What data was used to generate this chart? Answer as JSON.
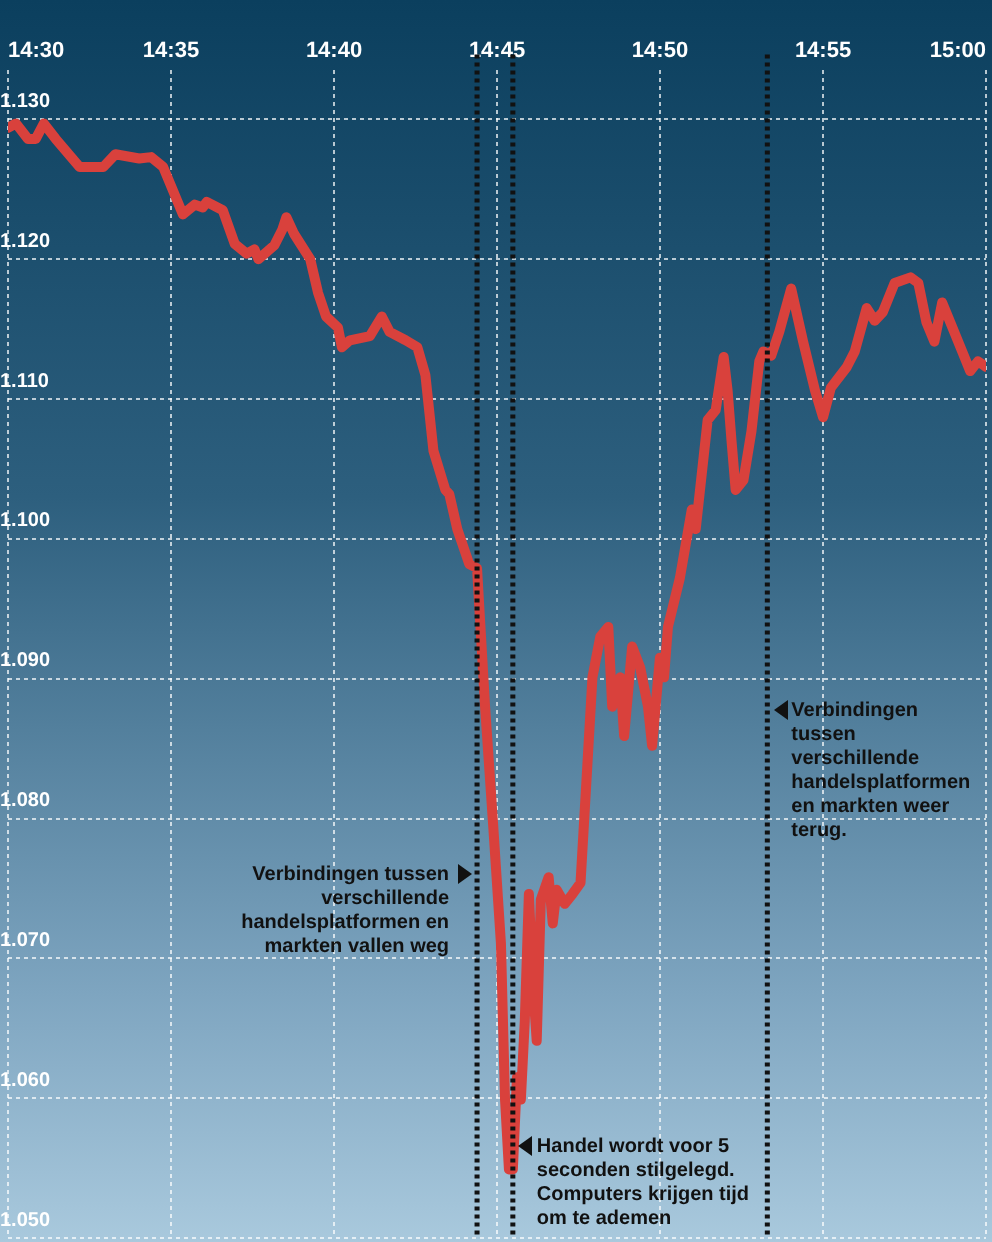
{
  "chart_data": {
    "type": "line",
    "legend": false,
    "grid": true,
    "marker": "none",
    "line_style": "solid",
    "xlim": [
      14.5,
      15.0
    ],
    "xticks": [
      {
        "value": 14.5,
        "label": "14:30"
      },
      {
        "value": 14.583333,
        "label": "14:35"
      },
      {
        "value": 14.666667,
        "label": "14:40"
      },
      {
        "value": 14.75,
        "label": "14:45"
      },
      {
        "value": 14.833333,
        "label": "14:50"
      },
      {
        "value": 14.916667,
        "label": "14:55"
      },
      {
        "value": 15.0,
        "label": "15:00"
      }
    ],
    "ylim": [
      1.05,
      1.1335
    ],
    "yticks": [
      {
        "value": 1.05,
        "label": "1.050"
      },
      {
        "value": 1.06,
        "label": "1.060"
      },
      {
        "value": 1.07,
        "label": "1.070"
      },
      {
        "value": 1.08,
        "label": "1.080"
      },
      {
        "value": 1.09,
        "label": "1.090"
      },
      {
        "value": 1.1,
        "label": "1.100"
      },
      {
        "value": 1.11,
        "label": "1.110"
      },
      {
        "value": 1.12,
        "label": "1.120"
      },
      {
        "value": 1.13,
        "label": "1.130"
      }
    ],
    "x": [
      14.5,
      14.5041,
      14.5102,
      14.5142,
      14.5183,
      14.5244,
      14.5366,
      14.5488,
      14.5549,
      14.5671,
      14.5732,
      14.5793,
      14.5894,
      14.5955,
      14.5996,
      14.6016,
      14.6098,
      14.6159,
      14.622,
      14.626,
      14.628,
      14.6362,
      14.6402,
      14.6423,
      14.6463,
      14.6545,
      14.6585,
      14.6626,
      14.6687,
      14.6707,
      14.6748,
      14.685,
      14.6911,
      14.6951,
      14.7033,
      14.7093,
      14.7134,
      14.7175,
      14.7236,
      14.7256,
      14.7297,
      14.7358,
      14.7398,
      14.7439,
      14.748,
      14.752,
      14.7541,
      14.7561,
      14.7581,
      14.7602,
      14.7622,
      14.7642,
      14.7663,
      14.7683,
      14.7703,
      14.7724,
      14.7764,
      14.7785,
      14.7805,
      14.7846,
      14.7886,
      14.7927,
      14.7988,
      14.8028,
      14.8069,
      14.8089,
      14.813,
      14.815,
      14.8191,
      14.8232,
      14.8272,
      14.8293,
      14.8333,
      14.8354,
      14.8374,
      14.8435,
      14.8496,
      14.8516,
      14.8577,
      14.8618,
      14.8659,
      14.8679,
      14.8699,
      14.872,
      14.876,
      14.8801,
      14.8841,
      14.8862,
      14.8902,
      14.8943,
      14.9004,
      14.9065,
      14.9126,
      14.9167,
      14.9207,
      14.9289,
      14.9329,
      14.939,
      14.9431,
      14.9472,
      14.9533,
      14.9614,
      14.9654,
      14.9695,
      14.9736,
      14.9776,
      14.9817,
      14.9878,
      14.9919,
      14.9959,
      15.0
    ],
    "series": [
      {
        "color": "#d9413c",
        "values": [
          1.1294,
          1.1297,
          1.1286,
          1.1286,
          1.1297,
          1.1286,
          1.1266,
          1.1266,
          1.1275,
          1.1272,
          1.1273,
          1.1266,
          1.1232,
          1.1239,
          1.1237,
          1.1241,
          1.1235,
          1.1211,
          1.1204,
          1.1207,
          1.12,
          1.121,
          1.1221,
          1.123,
          1.1218,
          1.12,
          1.1176,
          1.1159,
          1.1151,
          1.1137,
          1.1142,
          1.1145,
          1.1159,
          1.1148,
          1.1142,
          1.1137,
          1.1117,
          1.1063,
          1.1035,
          1.1032,
          1.1007,
          1.0982,
          1.0979,
          1.088,
          1.0796,
          1.0711,
          1.0599,
          1.0549,
          1.0549,
          1.0615,
          1.0599,
          1.0655,
          1.0746,
          1.0683,
          1.0641,
          1.0742,
          1.0758,
          1.0725,
          1.0749,
          1.0739,
          1.0746,
          1.0754,
          1.0901,
          1.093,
          1.0937,
          1.088,
          1.0901,
          1.0859,
          1.0923,
          1.0908,
          1.088,
          1.0852,
          1.0915,
          1.0901,
          1.0937,
          1.0972,
          1.1021,
          1.1007,
          1.1085,
          1.1092,
          1.113,
          1.1106,
          1.107,
          1.1035,
          1.1042,
          1.1077,
          1.1127,
          1.1134,
          1.1131,
          1.1148,
          1.1179,
          1.1141,
          1.1106,
          1.1087,
          1.1108,
          1.1123,
          1.1134,
          1.1165,
          1.1156,
          1.1162,
          1.1183,
          1.1187,
          1.1183,
          1.1155,
          1.1141,
          1.1169,
          1.1155,
          1.1134,
          1.112,
          1.1127,
          1.1123
        ]
      }
    ],
    "ref_lines": [
      {
        "axis": "x",
        "value": 14.7398,
        "color": "#111111",
        "line_style": "dotted",
        "label": "Verbindingen tussen verschillende handelsplatformen en markten vallen weg"
      },
      {
        "axis": "x",
        "value": 14.7581,
        "color": "#111111",
        "line_style": "dotted",
        "label": "Handel wordt voor 5 seconden stilgelegd. Computers krijgen tijd om te ademen"
      },
      {
        "axis": "x",
        "value": 14.8882,
        "color": "#111111",
        "line_style": "dotted",
        "label": "Verbindingen tussen verschillende handelsplatformen en markten weer terug."
      }
    ]
  }
}
